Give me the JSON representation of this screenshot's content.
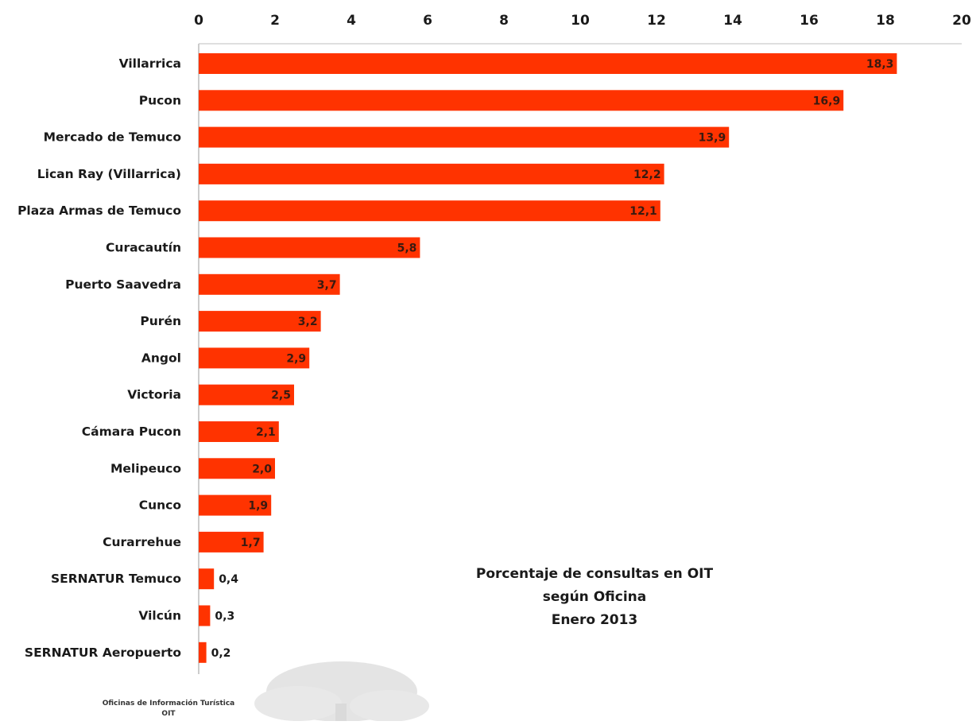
{
  "chart_data": {
    "type": "bar",
    "orientation": "horizontal",
    "title_lines": [
      "Porcentaje de consultas en OIT",
      "según Oficina",
      "Enero 2013"
    ],
    "categories": [
      "Villarrica",
      "Pucon",
      "Mercado de Temuco",
      "Lican Ray (Villarrica)",
      "Plaza Armas de Temuco",
      "Curacautín",
      "Puerto Saavedra",
      "Purén",
      "Angol",
      "Victoria",
      "Cámara Pucon",
      "Melipeuco",
      "Cunco",
      "Curarrehue",
      "SERNATUR Temuco",
      "Vilcún",
      "SERNATUR Aeropuerto"
    ],
    "values": [
      18.3,
      16.9,
      13.9,
      12.2,
      12.1,
      5.8,
      3.7,
      3.2,
      2.9,
      2.5,
      2.1,
      2.0,
      1.9,
      1.7,
      0.4,
      0.3,
      0.2
    ],
    "value_labels": [
      "18,3",
      "16,9",
      "13,9",
      "12,2",
      "12,1",
      "5,8",
      "3,7",
      "3,2",
      "2,9",
      "2,5",
      "2,1",
      "2,0",
      "1,9",
      "1,7",
      "0,4",
      "0,3",
      "0,2"
    ],
    "xlim": [
      0,
      20
    ],
    "x_ticks": [
      0,
      2,
      4,
      6,
      8,
      10,
      12,
      14,
      16,
      18,
      20
    ],
    "x_axis_position": "top",
    "grid": false,
    "legend": "none",
    "bar_color": "#ff3300"
  },
  "footer": {
    "line1": "Oficinas de Información Turística",
    "line2": "OIT"
  }
}
